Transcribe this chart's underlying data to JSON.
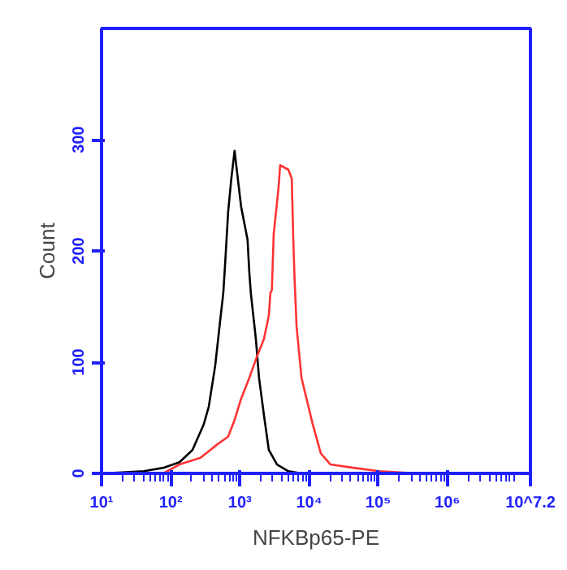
{
  "chart_data": {
    "type": "line",
    "xlabel": "NFKBp65-PE",
    "ylabel": "Count",
    "log": "x",
    "xlim": [
      10,
      15848932
    ],
    "ylim": [
      0,
      400
    ],
    "xticks": [
      {
        "value": 10,
        "label": "10¹"
      },
      {
        "value": 100,
        "label": "10²"
      },
      {
        "value": 1000,
        "label": "10³"
      },
      {
        "value": 10000,
        "label": "10⁴"
      },
      {
        "value": 100000,
        "label": "10⁵"
      },
      {
        "value": 1000000,
        "label": "10⁶"
      },
      {
        "value": 15848932,
        "label": "10^7.2"
      }
    ],
    "yticks": [
      0,
      100,
      200,
      300
    ],
    "grid": false,
    "marker": "none",
    "line_style": "solid",
    "series": [
      {
        "color": "#000000",
        "x": [
          10.5,
          41,
          78,
          134,
          206,
          300,
          355,
          440,
          516,
          575,
          607,
          676,
          752,
          838,
          933,
          1040,
          1290,
          1370,
          1440,
          1700,
          1890,
          2230,
          2620,
          3440,
          5020,
          7770
        ],
        "values": [
          0,
          2,
          5,
          10,
          21,
          44,
          60,
          97,
          136,
          162,
          185,
          235,
          265,
          290,
          265,
          240,
          210,
          180,
          162,
          121,
          86,
          52,
          21,
          8,
          2,
          0
        ]
      },
      {
        "color": "#ff3333",
        "x": [
          78,
          134,
          270,
          470,
          676,
          838,
          1040,
          1370,
          1790,
          2230,
          2620,
          2760,
          2900,
          3080,
          3610,
          3820,
          5020,
          5620,
          5900,
          6180,
          6600,
          7770,
          11200,
          14800,
          20400,
          43600,
          102000,
          380000
        ],
        "values": [
          0,
          8,
          14,
          26,
          33,
          48,
          67,
          86,
          106,
          121,
          142,
          162,
          165,
          215,
          256,
          277,
          273,
          265,
          212,
          174,
          132,
          86,
          45,
          18,
          8,
          5,
          2,
          0
        ]
      }
    ]
  }
}
